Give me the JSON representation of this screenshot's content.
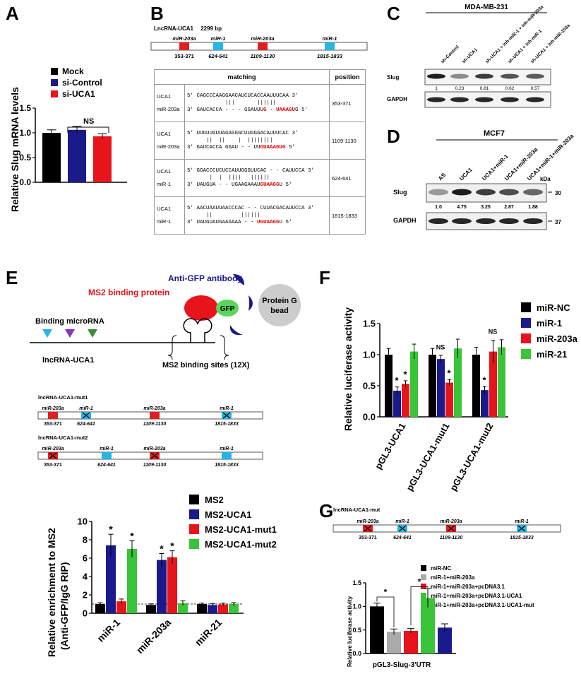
{
  "panel_letters": [
    "A",
    "B",
    "C",
    "D",
    "E",
    "F",
    "G"
  ],
  "colors": {
    "black": "#000000",
    "navy": "#1a1a8c",
    "red": "#e8141c",
    "green": "#39c439",
    "gray": "#aaaaaa",
    "cyan": "#26b6e6",
    "site_red": "#e02020"
  },
  "panelA": {
    "legend": [
      "Mock",
      "si-Control",
      "si-UCA1"
    ],
    "ns": "NS",
    "chart_data": {
      "type": "bar",
      "categories": [
        "Mock",
        "si-Control",
        "si-UCA1"
      ],
      "values": [
        1.0,
        1.06,
        0.93
      ],
      "errors": [
        0.06,
        0.07,
        0.05
      ],
      "ylabel": "Relative Slug mRNA levels",
      "ylim": [
        0,
        1.5
      ],
      "yticks": [
        "0.0",
        "0.5",
        "1.0",
        "1.5"
      ]
    }
  },
  "panelB": {
    "title": "LncRNA-UCA1",
    "length": "2299 bp",
    "sites": [
      {
        "name": "miR-203a",
        "pos": "353-371"
      },
      {
        "name": "miR-1",
        "pos": "624-641"
      },
      {
        "name": "miR-203a",
        "pos": "1109-1130"
      },
      {
        "name": "miR-1",
        "pos": "1815-1833"
      }
    ],
    "table_headers": [
      "matching",
      "position"
    ],
    "rows": [
      {
        "top": "UCA1",
        "bottom": "miR-203a",
        "seq1": "5' CAGCCCAAGGAACAUCUCACCAAUUUCAA 3'",
        "bars": "            |||       ||||||",
        "seq2a": "3' GAUCACCA - - - GGAUUU",
        "seq2b": "G - UAAAGU",
        "seq2c": "G 5'",
        "pos": "353-371"
      },
      {
        "top": "UCA1",
        "bottom": "miR-203a",
        "seq1": "5' UUGUUGUUAGAGGGCUUGGGACAUUUCAC 3'",
        "bars": "      ||  ||    |  ||||||||",
        "seq2a": "3' GAUCACCA GGAU - - UU",
        "seq2b": "GUAAAGUG",
        "seq2c": " 5'",
        "pos": "1109-1130"
      },
      {
        "top": "UCA1",
        "bottom": "miR-1",
        "seq1": "5' GGACCCUCUCCAUUGGGUUCAC - - CAUUCCA 3'",
        "bars": "       |  |  ||||   ||||||",
        "seq2a": "3' UAUGUA - - UGAAGAAAU",
        "seq2b": "GUAAGG",
        "seq2c": "U 5'",
        "pos": "624-641"
      },
      {
        "top": "UCA1",
        "bottom": "miR-1",
        "seq1": "5' AACUAAUUAACCCAC - - CUUACGACAUUCCA 3'",
        "bars": "      ||         ||||||",
        "seq2a": "3' UAUGUAUGAAGAAA - - ",
        "seq2b": "UGUAAGG",
        "seq2c": "U 5'",
        "pos": "1815-1833"
      }
    ]
  },
  "panelC": {
    "cell": "MDA-MB-231",
    "lanes": [
      "sh-Control",
      "sh-UCA1",
      "sh-UCA1 + inh-miR-1 + inh-miR-203a",
      "sh-UCA1 + inh-miR-1",
      "sh-UCA1 + inh-miR-203a"
    ],
    "rows": [
      "Slug",
      "GAPDH"
    ],
    "values": [
      "1",
      "0.23",
      "0.81",
      "0.62",
      "0.57"
    ]
  },
  "panelD": {
    "cell": "MCF7",
    "lanes": [
      "AS",
      "UCA1",
      "UCA1+miR-1",
      "UCA1+miR-203a",
      "UCA1+miR-1+miR-203a"
    ],
    "rows": [
      "Slug",
      "GAPDH"
    ],
    "kda_label": "kDa",
    "kda": [
      "30",
      "37"
    ],
    "values": [
      "1.0",
      "4.75",
      "3.25",
      "2.87",
      "1.88"
    ]
  },
  "panelE": {
    "antibody": "Anti-GFP antibody",
    "ms2bp": "MS2 binding protein",
    "gfp": "GFP",
    "bead1": "Protein G",
    "bead2": "bead",
    "binding": "Binding microRNA",
    "lnc": "lncRNA-UCA1",
    "sites_label": "MS2 binding sites (12X)",
    "mut1": "lncRNA-UCA1-mut1",
    "mut2": "lncRNA-UCA1-mut2",
    "sites": [
      {
        "name": "miR-203a",
        "pos": "353-371"
      },
      {
        "name": "miR-1",
        "pos": "624-641"
      },
      {
        "name": "miR-203a",
        "pos": "1109-1130"
      },
      {
        "name": "miR-1",
        "pos": "1815-1833"
      }
    ],
    "legend": [
      "MS2",
      "MS2-UCA1",
      "MS2-UCA1-mut1",
      "MS2-UCA1-mut2"
    ],
    "chart_data": {
      "type": "bar",
      "categories": [
        "miR-1",
        "miR-203a",
        "miR-21"
      ],
      "series": [
        {
          "name": "MS2",
          "values": [
            1.0,
            0.9,
            1.0
          ],
          "errors": [
            0.15,
            0.12,
            0.1
          ]
        },
        {
          "name": "MS2-UCA1",
          "values": [
            7.4,
            5.8,
            0.9
          ],
          "errors": [
            1.2,
            0.7,
            0.15
          ]
        },
        {
          "name": "MS2-UCA1-mut1",
          "values": [
            1.3,
            6.1,
            0.95
          ],
          "errors": [
            0.25,
            0.7,
            0.15
          ]
        },
        {
          "name": "MS2-UCA1-mut2",
          "values": [
            7.0,
            1.1,
            1.0
          ],
          "errors": [
            0.9,
            0.25,
            0.15
          ]
        }
      ],
      "stars": [
        "*",
        "*",
        "*",
        "*"
      ],
      "ylabel1": "Relative enrichment to MS2",
      "ylabel2": "(Anti-GFP/IgG RIP)",
      "ylim": [
        0,
        10
      ],
      "yticks": [
        "0",
        "2",
        "4",
        "6",
        "8",
        "10"
      ]
    }
  },
  "panelF": {
    "legend": [
      "miR-NC",
      "miR-1",
      "miR-203a",
      "miR-21"
    ],
    "ns": [
      "NS",
      "NS"
    ],
    "stars": [
      "*",
      "*",
      "*",
      "*"
    ],
    "chart_data": {
      "type": "bar",
      "categories": [
        "pGL3-UCA1",
        "pGL3-UCA1-mut1",
        "pGL3-UCA1-mut2"
      ],
      "series": [
        {
          "name": "miR-NC",
          "values": [
            1.0,
            1.0,
            1.0
          ],
          "errors": [
            0.1,
            0.1,
            0.12
          ]
        },
        {
          "name": "miR-1",
          "values": [
            0.42,
            0.93,
            0.43
          ],
          "errors": [
            0.06,
            0.06,
            0.06
          ]
        },
        {
          "name": "miR-203a",
          "values": [
            0.53,
            0.55,
            1.05
          ],
          "errors": [
            0.05,
            0.05,
            0.18
          ]
        },
        {
          "name": "miR-21",
          "values": [
            1.05,
            1.1,
            1.12
          ],
          "errors": [
            0.12,
            0.15,
            0.12
          ]
        }
      ],
      "ylabel": "Relative luciferase activity",
      "ylim": [
        0,
        1.5
      ],
      "yticks": [
        "0.0",
        "0.5",
        "1.0",
        "1.5"
      ]
    }
  },
  "panelG": {
    "mut": "lncRNA-UCA1-mut",
    "sites": [
      {
        "name": "miR-203a",
        "pos": "353-371"
      },
      {
        "name": "miR-1",
        "pos": "624-641"
      },
      {
        "name": "miR-203a",
        "pos": "1109-1130"
      },
      {
        "name": "miR-1",
        "pos": "1815-1833"
      }
    ],
    "legend": [
      "miR-NC",
      "miR-1+miR-203a",
      "miR-1+miR-203a+pcDNA3.1",
      "miR-1+miR-203a+pcDNA3.1-UCA1",
      "miR-1+miR-203a+pcDNA3.1-UCA1-mut"
    ],
    "stars": [
      "*",
      "*"
    ],
    "chart_data": {
      "type": "bar",
      "categories": [
        "miR-NC",
        "miR-1+miR-203a",
        "miR-1+miR-203a+pcDNA3.1",
        "miR-1+miR-203a+pcDNA3.1-UCA1",
        "miR-1+miR-203a+pcDNA3.1-UCA1-mut"
      ],
      "values": [
        1.0,
        0.46,
        0.48,
        1.18,
        0.55
      ],
      "errors": [
        0.07,
        0.06,
        0.05,
        0.2,
        0.08
      ],
      "xlabel": "pGL3-Slug-3'UTR",
      "ylabel": "Relative luciferase activity",
      "ylim": [
        0,
        1.5
      ],
      "yticks": [
        "0.0",
        "0.5",
        "1.0",
        "1.5"
      ]
    }
  }
}
